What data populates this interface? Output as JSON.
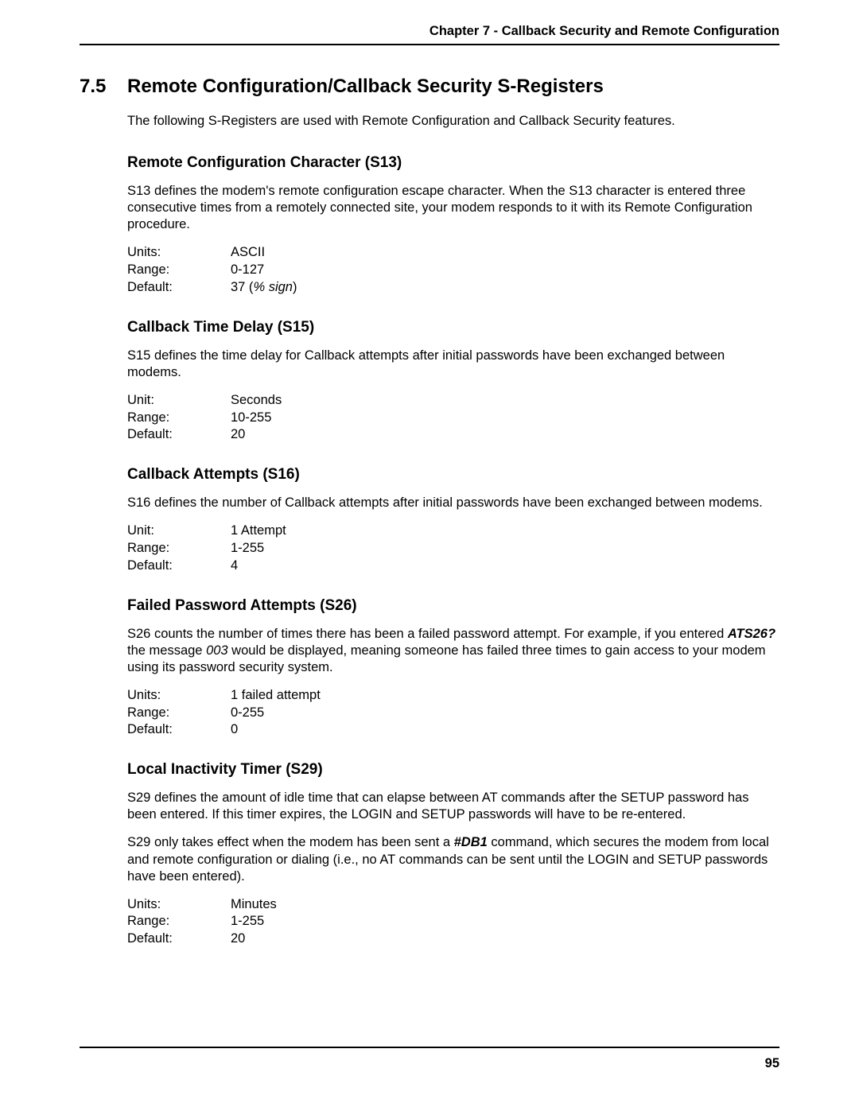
{
  "header": {
    "chapter_line": "Chapter 7 - Callback Security and Remote Configuration"
  },
  "section": {
    "number": "7.5",
    "title": "Remote Configuration/Callback Security S-Registers",
    "intro": "The following S-Registers are used with Remote Configuration and Callback Security features."
  },
  "s13": {
    "heading": "Remote Configuration Character (S13)",
    "desc": "S13 defines the modem's remote configuration escape character. When the S13 character is entered three consecutive times from a remotely connected site, your modem responds to it with its Remote Configuration procedure.",
    "rows": [
      {
        "label": "Units:",
        "value": "ASCII"
      },
      {
        "label": "Range:",
        "value": "0-127"
      }
    ],
    "default_label": "Default:",
    "default_pre": "37 (",
    "default_italic": "% sign",
    "default_post": ")"
  },
  "s15": {
    "heading": "Callback Time Delay (S15)",
    "desc": "S15 defines the time delay for Callback attempts after initial passwords have been exchanged between modems.",
    "rows": [
      {
        "label": "Unit:",
        "value": "Seconds"
      },
      {
        "label": "Range:",
        "value": "10-255"
      },
      {
        "label": "Default:",
        "value": "20"
      }
    ]
  },
  "s16": {
    "heading": "Callback Attempts (S16)",
    "desc": "S16 defines the number of Callback attempts after initial passwords have been exchanged between modems.",
    "rows": [
      {
        "label": "Unit:",
        "value": "1 Attempt"
      },
      {
        "label": "Range:",
        "value": "1-255"
      },
      {
        "label": "Default:",
        "value": "4"
      }
    ]
  },
  "s26": {
    "heading": "Failed Password Attempts (S26)",
    "desc_pre": "S26 counts the number of times there has been a failed password attempt. For example, if you entered ",
    "desc_cmd": "ATS26?",
    "desc_mid": " the message ",
    "desc_val": "003",
    "desc_post": " would be displayed, meaning someone has failed three times to gain access to your modem using its password security system.",
    "rows": [
      {
        "label": "Units:",
        "value": "1 failed attempt"
      },
      {
        "label": "Range:",
        "value": "0-255"
      },
      {
        "label": "Default:",
        "value": "0"
      }
    ]
  },
  "s29": {
    "heading": "Local Inactivity Timer (S29)",
    "desc1": "S29 defines the amount of idle time that can elapse between AT commands after the SETUP password has been entered. If this timer expires, the LOGIN and SETUP passwords will have to be re-entered.",
    "desc2_pre": "S29 only takes effect when the modem has been sent a ",
    "desc2_cmd": "#DB1",
    "desc2_post": " command, which secures the modem from local and remote configuration or dialing (i.e., no AT commands can be sent until the LOGIN and SETUP passwords have been entered).",
    "rows": [
      {
        "label": "Units:",
        "value": "Minutes"
      },
      {
        "label": "Range:",
        "value": "1-255"
      },
      {
        "label": "Default:",
        "value": "20"
      }
    ]
  },
  "footer": {
    "page_number": "95"
  }
}
